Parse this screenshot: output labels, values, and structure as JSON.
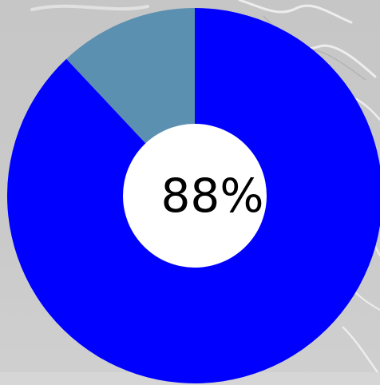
{
  "chart_data": {
    "type": "pie",
    "style": "donut",
    "center_label": "88%",
    "slices": [
      {
        "value": 88,
        "color": "#0000ff"
      },
      {
        "value": 12,
        "color": "#5b90b0"
      }
    ],
    "hole_color": "#ffffff",
    "title": "",
    "legend": "none"
  },
  "colors": {
    "background": "#c8c8c8",
    "map_lines": "#ececec"
  }
}
